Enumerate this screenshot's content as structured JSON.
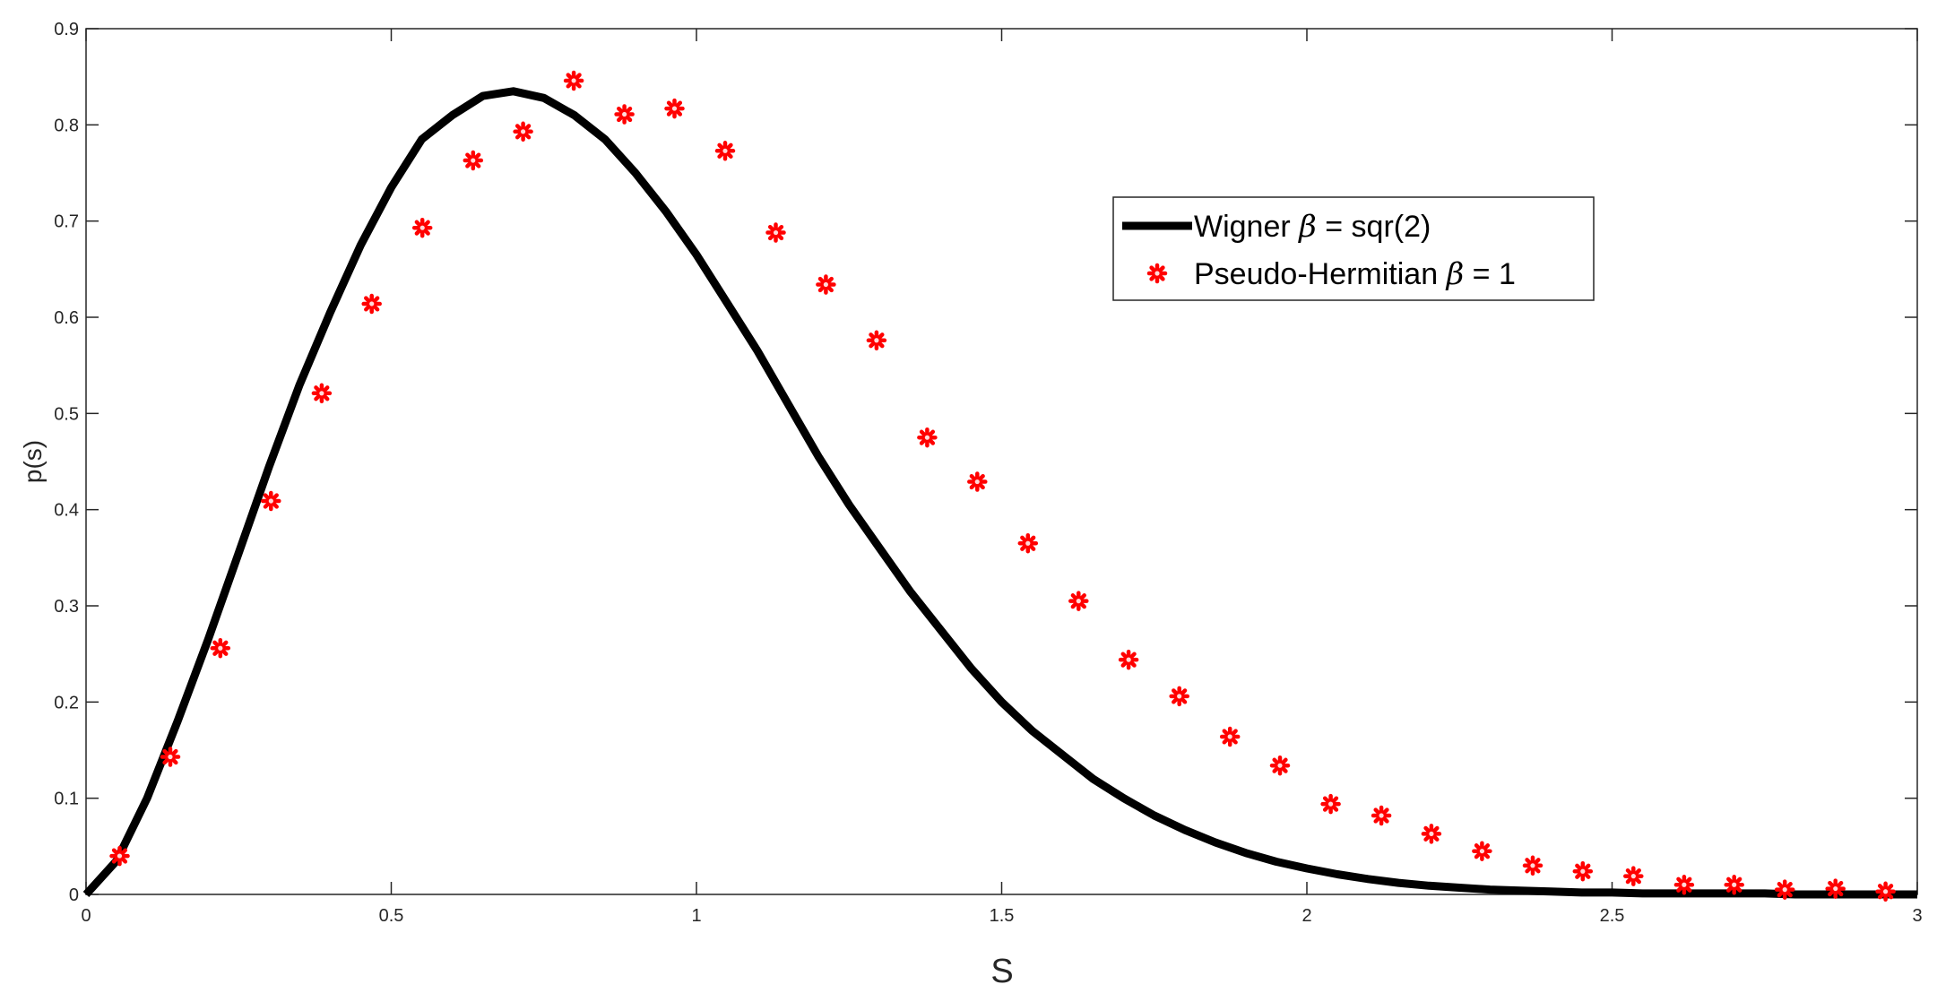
{
  "chart_data": {
    "type": "line",
    "title": "",
    "xlabel": "S",
    "ylabel": "p(s)",
    "xlim": [
      0,
      3
    ],
    "ylim": [
      0,
      0.9
    ],
    "x_ticks": [
      "0",
      "0.5",
      "1",
      "1.5",
      "2",
      "2.5",
      "3"
    ],
    "y_ticks": [
      "0",
      "0.1",
      "0.2",
      "0.3",
      "0.4",
      "0.5",
      "0.6",
      "0.7",
      "0.8",
      "0.9"
    ],
    "grid": false,
    "legend_position": "top-right",
    "colors": {
      "line": "#000000",
      "markers": "#ff0000"
    },
    "series": [
      {
        "name": "Wigner β = sqr(2)",
        "legend_prefix": "Wigner ",
        "legend_symbol": "β",
        "legend_suffix": " = sqr(2)",
        "style": "line",
        "x": [
          0,
          0.05,
          0.1,
          0.15,
          0.2,
          0.25,
          0.3,
          0.35,
          0.4,
          0.45,
          0.5,
          0.55,
          0.6,
          0.65,
          0.7,
          0.75,
          0.8,
          0.85,
          0.9,
          0.95,
          1.0,
          1.05,
          1.1,
          1.15,
          1.2,
          1.25,
          1.3,
          1.35,
          1.4,
          1.45,
          1.5,
          1.55,
          1.6,
          1.65,
          1.7,
          1.75,
          1.8,
          1.85,
          1.9,
          1.95,
          2.0,
          2.05,
          2.1,
          2.15,
          2.2,
          2.25,
          2.3,
          2.35,
          2.4,
          2.45,
          2.5,
          2.55,
          2.6,
          2.65,
          2.7,
          2.75,
          2.8,
          2.85,
          2.9,
          2.95,
          3.0
        ],
        "y": [
          0.0,
          0.035,
          0.1,
          0.18,
          0.265,
          0.355,
          0.445,
          0.53,
          0.605,
          0.675,
          0.735,
          0.785,
          0.81,
          0.83,
          0.835,
          0.828,
          0.81,
          0.785,
          0.75,
          0.71,
          0.665,
          0.615,
          0.565,
          0.51,
          0.455,
          0.405,
          0.36,
          0.315,
          0.275,
          0.235,
          0.2,
          0.17,
          0.145,
          0.12,
          0.1,
          0.082,
          0.067,
          0.054,
          0.043,
          0.034,
          0.027,
          0.021,
          0.016,
          0.012,
          0.009,
          0.007,
          0.005,
          0.004,
          0.003,
          0.002,
          0.002,
          0.001,
          0.001,
          0.001,
          0.001,
          0.001,
          0.0,
          0.0,
          0.0,
          0.0,
          0.0
        ]
      },
      {
        "name": "Pseudo-Hermitian β = 1",
        "legend_prefix": "Pseudo-Hermitian ",
        "legend_symbol": "β",
        "legend_suffix": " = 1",
        "style": "markers",
        "x": [
          0.055,
          0.138,
          0.22,
          0.303,
          0.386,
          0.468,
          0.551,
          0.634,
          0.716,
          0.799,
          0.882,
          0.964,
          1.047,
          1.13,
          1.212,
          1.295,
          1.378,
          1.46,
          1.543,
          1.626,
          1.708,
          1.791,
          1.874,
          1.956,
          2.039,
          2.122,
          2.204,
          2.287,
          2.37,
          2.452,
          2.535,
          2.618,
          2.7,
          2.783,
          2.866,
          2.948
        ],
        "y": [
          0.04,
          0.143,
          0.256,
          0.409,
          0.521,
          0.614,
          0.693,
          0.763,
          0.793,
          0.846,
          0.811,
          0.817,
          0.773,
          0.688,
          0.634,
          0.576,
          0.475,
          0.429,
          0.365,
          0.305,
          0.244,
          0.206,
          0.164,
          0.134,
          0.094,
          0.082,
          0.063,
          0.045,
          0.03,
          0.024,
          0.019,
          0.01,
          0.01,
          0.005,
          0.006,
          0.003
        ]
      }
    ]
  }
}
